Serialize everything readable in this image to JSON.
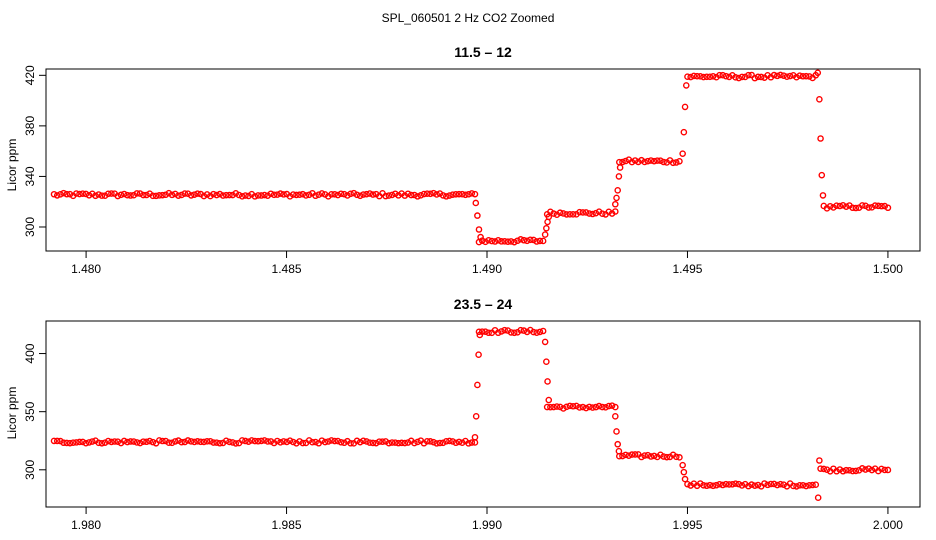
{
  "figure": {
    "title": "SPL_060501  2 Hz CO2 Zoomed"
  },
  "chart_data": [
    {
      "type": "scatter",
      "title": "11.5 – 12",
      "xlabel": "",
      "ylabel": "Licor ppm",
      "xlim": [
        1.479,
        1.5008
      ],
      "ylim": [
        281,
        425
      ],
      "xticks": [
        1.48,
        1.485,
        1.49,
        1.495,
        1.5
      ],
      "xtick_labels": [
        "1.480",
        "1.485",
        "1.490",
        "1.495",
        "1.500"
      ],
      "yticks": [
        300,
        340,
        380,
        420
      ],
      "ytick_labels": [
        "300",
        "340",
        "380",
        "420"
      ],
      "grid": false,
      "marker": "open-circle",
      "color": "#ff0000",
      "plateaus": [
        {
          "x_start": 1.4792,
          "x_end": 1.4897,
          "y": 325.5
        },
        {
          "x_start": 1.4898,
          "x_end": 1.4914,
          "y": 289.0
        },
        {
          "x_start": 1.4915,
          "x_end": 1.4932,
          "y": 311.0
        },
        {
          "x_start": 1.4933,
          "x_end": 1.4948,
          "y": 352.0
        },
        {
          "x_start": 1.495,
          "x_end": 1.4982,
          "y": 419.0
        },
        {
          "x_start": 1.4984,
          "x_end": 1.5,
          "y": 316.0
        }
      ],
      "transition_points": [
        {
          "x": 1.48972,
          "y": 319
        },
        {
          "x": 1.48976,
          "y": 309
        },
        {
          "x": 1.4898,
          "y": 298
        },
        {
          "x": 1.48984,
          "y": 292
        },
        {
          "x": 1.49145,
          "y": 294
        },
        {
          "x": 1.49148,
          "y": 299
        },
        {
          "x": 1.49151,
          "y": 304
        },
        {
          "x": 1.49154,
          "y": 308
        },
        {
          "x": 1.4932,
          "y": 318
        },
        {
          "x": 1.49323,
          "y": 323
        },
        {
          "x": 1.49326,
          "y": 329
        },
        {
          "x": 1.49329,
          "y": 340
        },
        {
          "x": 1.49332,
          "y": 347
        },
        {
          "x": 1.49488,
          "y": 358
        },
        {
          "x": 1.49491,
          "y": 375
        },
        {
          "x": 1.49494,
          "y": 395
        },
        {
          "x": 1.49497,
          "y": 412
        },
        {
          "x": 1.49825,
          "y": 422
        },
        {
          "x": 1.49829,
          "y": 401
        },
        {
          "x": 1.49832,
          "y": 370
        },
        {
          "x": 1.49835,
          "y": 341
        },
        {
          "x": 1.49838,
          "y": 325
        }
      ]
    },
    {
      "type": "scatter",
      "title": "23.5 – 24",
      "xlabel": "",
      "ylabel": "Licor ppm",
      "xlim": [
        1.979,
        2.0008
      ],
      "ylim": [
        268,
        428
      ],
      "xticks": [
        1.98,
        1.985,
        1.99,
        1.995,
        2.0
      ],
      "xtick_labels": [
        "1.980",
        "1.985",
        "1.990",
        "1.995",
        "2.000"
      ],
      "yticks": [
        300,
        350,
        400
      ],
      "ytick_labels": [
        "300",
        "350",
        "400"
      ],
      "grid": false,
      "marker": "open-circle",
      "color": "#ff0000",
      "plateaus": [
        {
          "x_start": 1.9792,
          "x_end": 1.9897,
          "y": 324.0
        },
        {
          "x_start": 1.9898,
          "x_end": 1.9914,
          "y": 419.0
        },
        {
          "x_start": 1.9915,
          "x_end": 1.9932,
          "y": 354.0
        },
        {
          "x_start": 1.9933,
          "x_end": 1.9948,
          "y": 312.0
        },
        {
          "x_start": 1.995,
          "x_end": 1.9982,
          "y": 287.0
        },
        {
          "x_start": 1.9984,
          "x_end": 2.0,
          "y": 300.0
        }
      ],
      "transition_points": [
        {
          "x": 1.9897,
          "y": 328
        },
        {
          "x": 1.98973,
          "y": 346
        },
        {
          "x": 1.98976,
          "y": 373
        },
        {
          "x": 1.98979,
          "y": 399
        },
        {
          "x": 1.98982,
          "y": 416
        },
        {
          "x": 1.99145,
          "y": 410
        },
        {
          "x": 1.99148,
          "y": 393
        },
        {
          "x": 1.99151,
          "y": 376
        },
        {
          "x": 1.99154,
          "y": 360
        },
        {
          "x": 1.9932,
          "y": 346
        },
        {
          "x": 1.99323,
          "y": 333
        },
        {
          "x": 1.99326,
          "y": 322
        },
        {
          "x": 1.99329,
          "y": 316
        },
        {
          "x": 1.99488,
          "y": 304
        },
        {
          "x": 1.99491,
          "y": 298
        },
        {
          "x": 1.99494,
          "y": 292
        },
        {
          "x": 1.99826,
          "y": 276
        },
        {
          "x": 1.99829,
          "y": 308
        },
        {
          "x": 1.99832,
          "y": 301
        }
      ]
    }
  ]
}
